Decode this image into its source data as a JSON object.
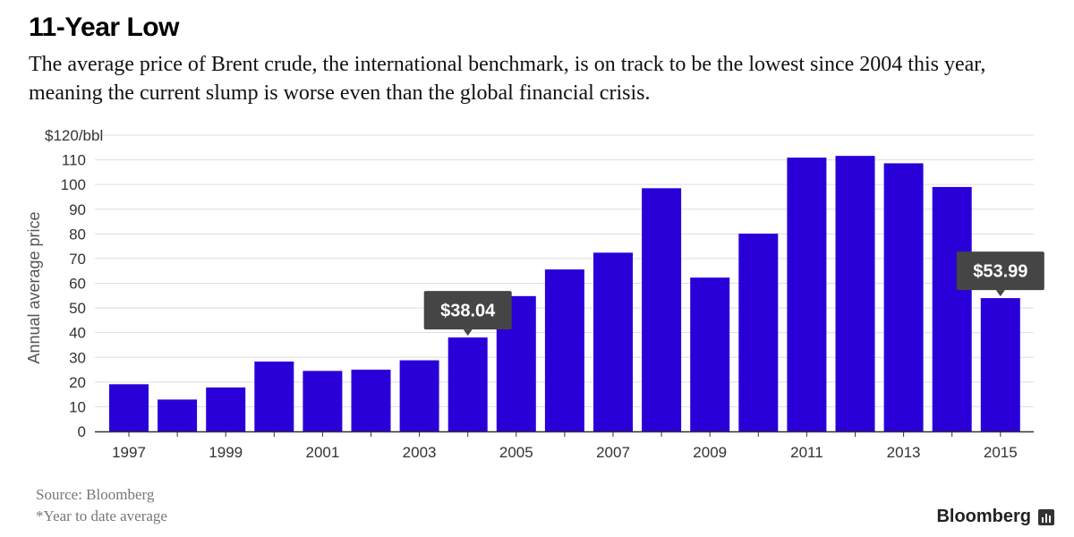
{
  "title": "11-Year Low",
  "subtitle": "The average price of Brent crude, the international benchmark, is on track to be the lowest since 2004 this year, meaning the current slump is worse even than the global financial crisis.",
  "source": "Source: Bloomberg",
  "note": "*Year to date average",
  "brand": {
    "name": "Bloomberg",
    "icon": "bloomberg-terminal-icon"
  },
  "colors": {
    "bar": "#2a00d9",
    "callout": "#454545",
    "grid": "#dedede",
    "axis": "#333333"
  },
  "chart_data": {
    "type": "bar",
    "categories": [
      "1997",
      "1998",
      "1999",
      "2000",
      "2001",
      "2002",
      "2003",
      "2004",
      "2005",
      "2006",
      "2007",
      "2008",
      "2009",
      "2010",
      "2011",
      "2012",
      "2013",
      "2014",
      "2015"
    ],
    "x_tick_labels": [
      "1997",
      "",
      "1999",
      "",
      "2001",
      "",
      "2003",
      "",
      "2005",
      "",
      "2007",
      "",
      "2009",
      "",
      "2011",
      "",
      "2013",
      "",
      "2015"
    ],
    "values": [
      19.1,
      12.9,
      17.8,
      28.3,
      24.5,
      25.0,
      28.8,
      38.04,
      54.8,
      65.6,
      72.4,
      98.5,
      62.3,
      80.1,
      110.9,
      111.6,
      108.6,
      99.0,
      53.99
    ],
    "ylim": [
      0,
      120
    ],
    "yticks": [
      0,
      10,
      20,
      30,
      40,
      50,
      60,
      70,
      80,
      90,
      100,
      110,
      120
    ],
    "ytick_labels": [
      "0",
      "10",
      "20",
      "30",
      "40",
      "50",
      "60",
      "70",
      "80",
      "90",
      "100",
      "110",
      "$120/bbl"
    ],
    "ylabel": "Annual average price",
    "xlabel": "",
    "grid": true,
    "annotations": [
      {
        "category": "2004",
        "label": "$38.04"
      },
      {
        "category": "2015",
        "label": "$53.99"
      }
    ]
  }
}
